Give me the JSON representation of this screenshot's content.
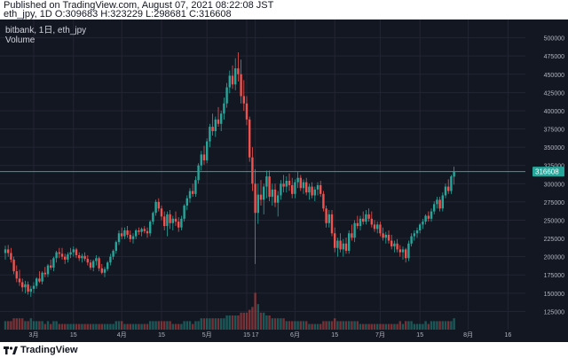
{
  "header": {
    "published": "Published on TradingView.com, August 07, 2021 08:22:08 JST",
    "ohlc": "eth_jpy, 1D O:309683 H:323229 L:298681 C:316608"
  },
  "legend": {
    "symbol": "bitbank, 1日, eth_jpy",
    "volume": "Volume"
  },
  "footer": {
    "brand": "TradingView"
  },
  "colors": {
    "background": "#131722",
    "up": "#26a69a",
    "down": "#ef5350",
    "grid": "#232632",
    "text": "#b2b5be",
    "price_line": "#26a69a"
  },
  "chart_data": {
    "type": "candlestick",
    "last_price": "316608",
    "last_close": 316608,
    "ylim": [
      100000,
      525000
    ],
    "y_ticks": [
      125000,
      150000,
      175000,
      200000,
      225000,
      250000,
      275000,
      300000,
      325000,
      350000,
      375000,
      400000,
      425000,
      450000,
      475000,
      500000
    ],
    "x_ticks": [
      {
        "label": "3月",
        "index": 10
      },
      {
        "label": "15",
        "index": 24
      },
      {
        "label": "4月",
        "index": 41
      },
      {
        "label": "15",
        "index": 55
      },
      {
        "label": "5月",
        "index": 71
      },
      {
        "label": "15",
        "index": 85
      },
      {
        "label": "17",
        "index": 88
      },
      {
        "label": "6月",
        "index": 102
      },
      {
        "label": "15",
        "index": 116
      },
      {
        "label": "7月",
        "index": 132
      },
      {
        "label": "15",
        "index": 146
      },
      {
        "label": "8月",
        "index": 163
      },
      {
        "label": "16",
        "index": 177
      }
    ],
    "candles": [
      [
        205000,
        215000,
        196000,
        210000,
        3
      ],
      [
        210000,
        216000,
        200000,
        205000,
        3
      ],
      [
        205000,
        212000,
        192000,
        196000,
        3
      ],
      [
        196000,
        200000,
        176000,
        180000,
        4
      ],
      [
        180000,
        188000,
        165000,
        170000,
        4
      ],
      [
        170000,
        182000,
        160000,
        165000,
        4
      ],
      [
        165000,
        170000,
        152000,
        158000,
        4
      ],
      [
        158000,
        167000,
        150000,
        162000,
        3
      ],
      [
        162000,
        166000,
        148000,
        152000,
        3
      ],
      [
        152000,
        160000,
        145000,
        156000,
        4
      ],
      [
        156000,
        165000,
        150000,
        160000,
        3
      ],
      [
        160000,
        172000,
        156000,
        170000,
        3
      ],
      [
        170000,
        180000,
        164000,
        166000,
        3
      ],
      [
        166000,
        180000,
        162000,
        178000,
        3
      ],
      [
        178000,
        186000,
        172000,
        176000,
        2
      ],
      [
        176000,
        190000,
        172000,
        188000,
        3
      ],
      [
        188000,
        196000,
        182000,
        185000,
        2
      ],
      [
        185000,
        200000,
        180000,
        198000,
        3
      ],
      [
        198000,
        208000,
        192000,
        206000,
        3
      ],
      [
        206000,
        212000,
        198000,
        204000,
        2
      ],
      [
        204000,
        212000,
        196000,
        200000,
        2
      ],
      [
        200000,
        204000,
        190000,
        196000,
        2
      ],
      [
        196000,
        206000,
        192000,
        203000,
        2
      ],
      [
        203000,
        212000,
        198000,
        206000,
        2
      ],
      [
        206000,
        214000,
        200000,
        210000,
        2
      ],
      [
        210000,
        212000,
        198000,
        202000,
        2
      ],
      [
        202000,
        206000,
        194000,
        198000,
        2
      ],
      [
        198000,
        204000,
        192000,
        201000,
        2
      ],
      [
        201000,
        206000,
        194000,
        197000,
        2
      ],
      [
        197000,
        202000,
        188000,
        192000,
        2
      ],
      [
        192000,
        196000,
        182000,
        185000,
        2
      ],
      [
        185000,
        196000,
        180000,
        194000,
        2
      ],
      [
        194000,
        202000,
        188000,
        198000,
        2
      ],
      [
        198000,
        200000,
        180000,
        184000,
        2
      ],
      [
        184000,
        190000,
        176000,
        178000,
        2
      ],
      [
        178000,
        186000,
        172000,
        183000,
        2
      ],
      [
        183000,
        194000,
        180000,
        192000,
        2
      ],
      [
        192000,
        204000,
        188000,
        200000,
        2
      ],
      [
        200000,
        210000,
        196000,
        208000,
        2
      ],
      [
        208000,
        222000,
        204000,
        220000,
        3
      ],
      [
        220000,
        236000,
        216000,
        232000,
        3
      ],
      [
        232000,
        240000,
        224000,
        228000,
        3
      ],
      [
        228000,
        240000,
        224000,
        236000,
        2
      ],
      [
        236000,
        242000,
        226000,
        230000,
        2
      ],
      [
        230000,
        236000,
        220000,
        224000,
        2
      ],
      [
        224000,
        232000,
        218000,
        228000,
        2
      ],
      [
        228000,
        238000,
        224000,
        236000,
        2
      ],
      [
        236000,
        240000,
        230000,
        234000,
        2
      ],
      [
        234000,
        240000,
        228000,
        238000,
        2
      ],
      [
        238000,
        242000,
        232000,
        235000,
        2
      ],
      [
        235000,
        240000,
        226000,
        232000,
        2
      ],
      [
        232000,
        250000,
        228000,
        248000,
        3
      ],
      [
        248000,
        262000,
        244000,
        260000,
        3
      ],
      [
        260000,
        278000,
        256000,
        275000,
        3
      ],
      [
        275000,
        280000,
        262000,
        266000,
        3
      ],
      [
        266000,
        270000,
        250000,
        255000,
        3
      ],
      [
        255000,
        262000,
        236000,
        242000,
        3
      ],
      [
        242000,
        262000,
        228000,
        258000,
        3
      ],
      [
        258000,
        264000,
        238000,
        246000,
        3
      ],
      [
        246000,
        256000,
        236000,
        252000,
        2
      ],
      [
        252000,
        262000,
        242000,
        248000,
        2
      ],
      [
        248000,
        254000,
        234000,
        240000,
        2
      ],
      [
        240000,
        256000,
        236000,
        252000,
        2
      ],
      [
        252000,
        272000,
        248000,
        270000,
        3
      ],
      [
        270000,
        284000,
        264000,
        280000,
        3
      ],
      [
        280000,
        294000,
        274000,
        290000,
        3
      ],
      [
        290000,
        300000,
        282000,
        286000,
        2
      ],
      [
        286000,
        310000,
        282000,
        305000,
        3
      ],
      [
        305000,
        328000,
        300000,
        325000,
        3
      ],
      [
        325000,
        345000,
        318000,
        340000,
        4
      ],
      [
        340000,
        352000,
        326000,
        332000,
        4
      ],
      [
        332000,
        362000,
        328000,
        358000,
        4
      ],
      [
        358000,
        382000,
        350000,
        378000,
        4
      ],
      [
        378000,
        396000,
        366000,
        372000,
        4
      ],
      [
        372000,
        392000,
        364000,
        388000,
        4
      ],
      [
        388000,
        405000,
        378000,
        382000,
        4
      ],
      [
        382000,
        400000,
        372000,
        396000,
        4
      ],
      [
        396000,
        418000,
        388000,
        410000,
        4
      ],
      [
        410000,
        438000,
        404000,
        432000,
        5
      ],
      [
        432000,
        455000,
        424000,
        448000,
        5
      ],
      [
        448000,
        462000,
        430000,
        436000,
        5
      ],
      [
        436000,
        472000,
        428000,
        458000,
        5
      ],
      [
        458000,
        480000,
        440000,
        450000,
        5
      ],
      [
        450000,
        470000,
        410000,
        420000,
        6
      ],
      [
        420000,
        442000,
        400000,
        410000,
        6
      ],
      [
        410000,
        420000,
        380000,
        388000,
        6
      ],
      [
        388000,
        392000,
        330000,
        336000,
        7
      ],
      [
        336000,
        350000,
        290000,
        300000,
        8
      ],
      [
        300000,
        320000,
        190000,
        260000,
        13
      ],
      [
        260000,
        300000,
        245000,
        285000,
        9
      ],
      [
        285000,
        305000,
        270000,
        278000,
        6
      ],
      [
        278000,
        300000,
        258000,
        296000,
        6
      ],
      [
        296000,
        318000,
        280000,
        310000,
        5
      ],
      [
        310000,
        318000,
        276000,
        282000,
        5
      ],
      [
        282000,
        300000,
        270000,
        292000,
        4
      ],
      [
        292000,
        300000,
        268000,
        274000,
        4
      ],
      [
        274000,
        290000,
        255000,
        284000,
        4
      ],
      [
        284000,
        305000,
        278000,
        300000,
        4
      ],
      [
        300000,
        312000,
        288000,
        296000,
        4
      ],
      [
        296000,
        310000,
        288000,
        304000,
        3
      ],
      [
        304000,
        314000,
        290000,
        298000,
        3
      ],
      [
        298000,
        308000,
        280000,
        286000,
        3
      ],
      [
        286000,
        306000,
        280000,
        302000,
        3
      ],
      [
        302000,
        316000,
        294000,
        308000,
        3
      ],
      [
        308000,
        312000,
        290000,
        294000,
        3
      ],
      [
        294000,
        306000,
        286000,
        302000,
        3
      ],
      [
        302000,
        308000,
        284000,
        288000,
        3
      ],
      [
        288000,
        300000,
        278000,
        296000,
        2
      ],
      [
        296000,
        302000,
        280000,
        284000,
        2
      ],
      [
        284000,
        296000,
        276000,
        292000,
        2
      ],
      [
        292000,
        302000,
        284000,
        298000,
        2
      ],
      [
        298000,
        304000,
        282000,
        286000,
        2
      ],
      [
        286000,
        290000,
        262000,
        266000,
        3
      ],
      [
        266000,
        270000,
        240000,
        246000,
        3
      ],
      [
        246000,
        264000,
        240000,
        258000,
        3
      ],
      [
        258000,
        264000,
        228000,
        232000,
        3
      ],
      [
        232000,
        240000,
        206000,
        212000,
        4
      ],
      [
        212000,
        226000,
        200000,
        222000,
        3
      ],
      [
        222000,
        232000,
        206000,
        210000,
        3
      ],
      [
        210000,
        224000,
        200000,
        218000,
        3
      ],
      [
        218000,
        226000,
        204000,
        208000,
        3
      ],
      [
        208000,
        236000,
        204000,
        232000,
        3
      ],
      [
        232000,
        244000,
        222000,
        226000,
        3
      ],
      [
        226000,
        250000,
        220000,
        246000,
        3
      ],
      [
        246000,
        256000,
        238000,
        242000,
        3
      ],
      [
        242000,
        256000,
        236000,
        252000,
        2
      ],
      [
        252000,
        262000,
        244000,
        248000,
        2
      ],
      [
        248000,
        264000,
        244000,
        258000,
        2
      ],
      [
        258000,
        266000,
        248000,
        252000,
        2
      ],
      [
        252000,
        262000,
        240000,
        244000,
        2
      ],
      [
        244000,
        250000,
        234000,
        238000,
        2
      ],
      [
        238000,
        248000,
        232000,
        244000,
        2
      ],
      [
        244000,
        248000,
        228000,
        232000,
        2
      ],
      [
        232000,
        240000,
        222000,
        226000,
        2
      ],
      [
        226000,
        234000,
        218000,
        230000,
        2
      ],
      [
        230000,
        236000,
        218000,
        222000,
        2
      ],
      [
        222000,
        230000,
        210000,
        214000,
        2
      ],
      [
        214000,
        222000,
        206000,
        218000,
        2
      ],
      [
        218000,
        224000,
        206000,
        210000,
        2
      ],
      [
        210000,
        216000,
        200000,
        206000,
        3
      ],
      [
        206000,
        214000,
        196000,
        210000,
        2
      ],
      [
        210000,
        212000,
        192000,
        198000,
        3
      ],
      [
        198000,
        222000,
        194000,
        218000,
        3
      ],
      [
        218000,
        232000,
        214000,
        228000,
        3
      ],
      [
        228000,
        236000,
        222000,
        232000,
        2
      ],
      [
        232000,
        240000,
        226000,
        236000,
        2
      ],
      [
        236000,
        246000,
        232000,
        244000,
        2
      ],
      [
        244000,
        252000,
        238000,
        248000,
        2
      ],
      [
        248000,
        258000,
        244000,
        256000,
        3
      ],
      [
        256000,
        262000,
        248000,
        252000,
        2
      ],
      [
        252000,
        266000,
        248000,
        262000,
        3
      ],
      [
        262000,
        276000,
        258000,
        272000,
        3
      ],
      [
        272000,
        282000,
        266000,
        278000,
        3
      ],
      [
        278000,
        282000,
        262000,
        266000,
        3
      ],
      [
        266000,
        288000,
        262000,
        284000,
        3
      ],
      [
        284000,
        300000,
        280000,
        296000,
        3
      ],
      [
        296000,
        306000,
        286000,
        290000,
        3
      ],
      [
        290000,
        312000,
        286000,
        310000,
        3
      ],
      [
        309683,
        323229,
        298681,
        316608,
        4
      ]
    ]
  }
}
